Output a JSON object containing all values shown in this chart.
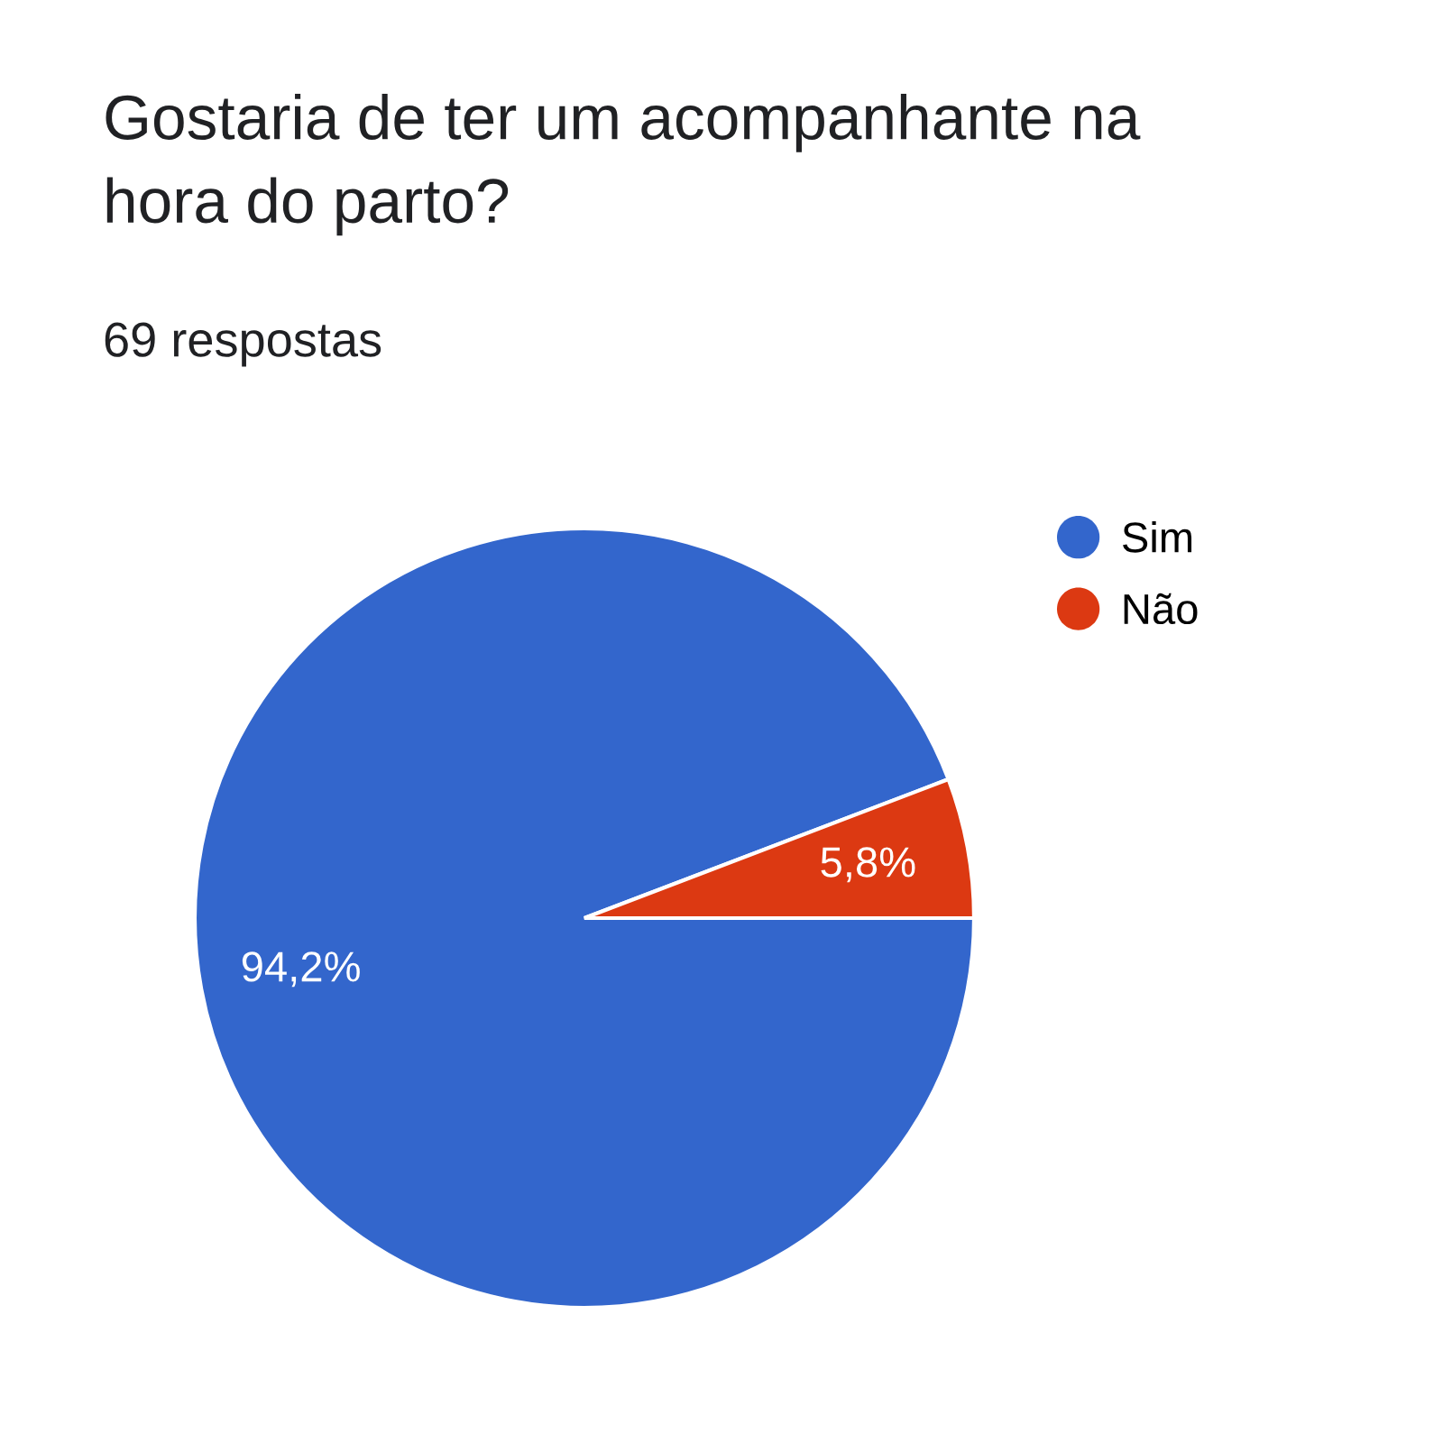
{
  "chart_data": {
    "type": "pie",
    "title": "Gostaria de ter um acompanhante na hora do parto?",
    "subtitle": "69 respostas",
    "categories": [
      "Sim",
      "Não"
    ],
    "values": [
      94.2,
      5.8
    ],
    "colors": [
      "#3366cc",
      "#dc3912"
    ],
    "value_labels": [
      "94,2%",
      "5,8%"
    ],
    "legend": "top right"
  }
}
